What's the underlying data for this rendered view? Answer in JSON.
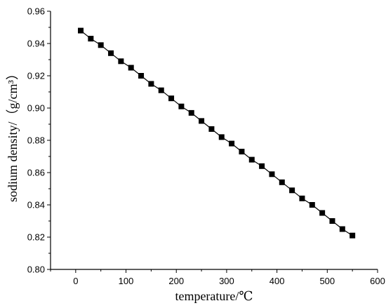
{
  "chart_data": {
    "type": "line",
    "xlabel": "temperature/℃",
    "ylabel": "sodium  density/（g/cm³）",
    "xlim": [
      -50,
      600
    ],
    "ylim": [
      0.8,
      0.96
    ],
    "x_ticks": [
      0,
      100,
      200,
      300,
      400,
      500,
      600
    ],
    "x_tick_labels": [
      "0",
      "100",
      "200",
      "300",
      "400",
      "500",
      "600"
    ],
    "y_ticks": [
      0.8,
      0.82,
      0.84,
      0.86,
      0.88,
      0.9,
      0.92,
      0.94,
      0.96
    ],
    "y_tick_labels": [
      "0.80",
      "0.82",
      "0.84",
      "0.86",
      "0.88",
      "0.90",
      "0.92",
      "0.94",
      "0.96"
    ],
    "grid": false,
    "marker": "square",
    "series": [
      {
        "color": "#000000",
        "x": [
          10,
          30,
          50,
          70,
          90,
          110,
          130,
          150,
          170,
          190,
          210,
          230,
          250,
          270,
          290,
          310,
          330,
          350,
          370,
          390,
          410,
          430,
          450,
          470,
          490,
          510,
          530,
          550
        ],
        "y": [
          0.948,
          0.943,
          0.939,
          0.934,
          0.929,
          0.925,
          0.92,
          0.915,
          0.911,
          0.906,
          0.901,
          0.897,
          0.892,
          0.887,
          0.882,
          0.878,
          0.873,
          0.868,
          0.864,
          0.859,
          0.854,
          0.849,
          0.844,
          0.84,
          0.835,
          0.83,
          0.825,
          0.821
        ]
      }
    ]
  }
}
